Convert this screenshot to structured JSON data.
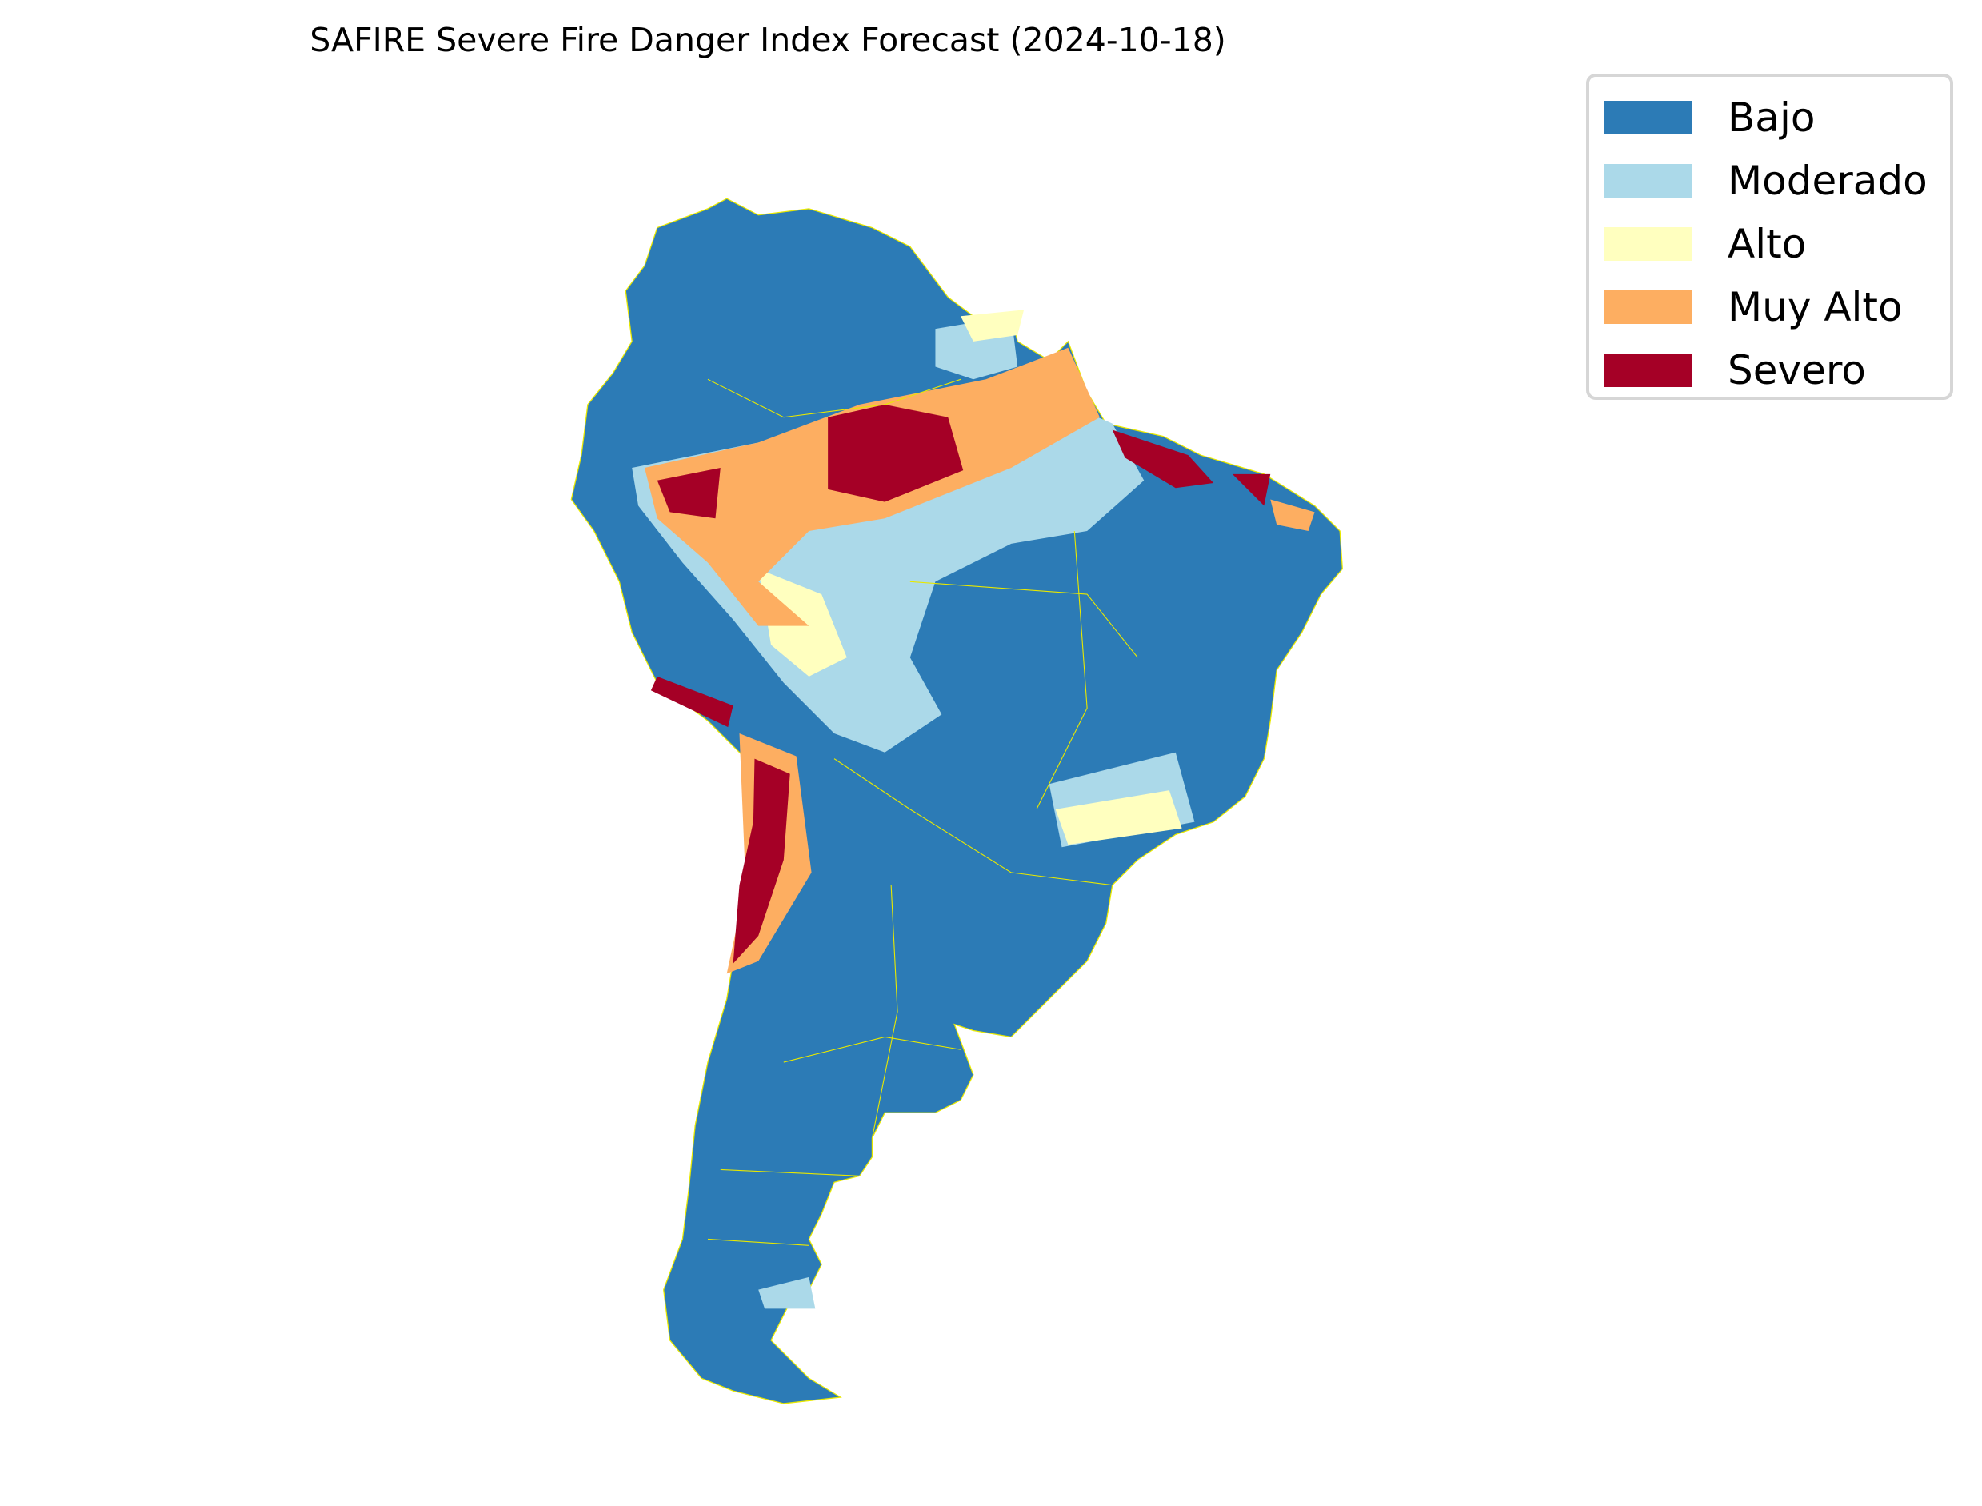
{
  "chart_data": {
    "type": "heatmap",
    "title": "SAFIRE Severe Fire Danger Index Forecast (2024-10-18)",
    "region": "South America",
    "legend_placement": "top-right",
    "categories": [
      {
        "label": "Bajo",
        "color": "#2c7bb6"
      },
      {
        "label": "Moderado",
        "color": "#abd9e9"
      },
      {
        "label": "Alto",
        "color": "#ffffbf"
      },
      {
        "label": "Muy Alto",
        "color": "#fdae61"
      },
      {
        "label": "Severo",
        "color": "#a50026"
      }
    ],
    "border_color": "#e8e800",
    "dominant_category": "Bajo",
    "hotspots": [
      {
        "area": "Central Amazon",
        "level": "Severo"
      },
      {
        "area": "Western Amazon (Peru/Colombia/Brazil)",
        "level": "Severo"
      },
      {
        "area": "Northeast Brazil coast",
        "level": "Severo"
      },
      {
        "area": "Atacama / Andes (Chile)",
        "level": "Severo"
      },
      {
        "area": "Southern Peru coast",
        "level": "Severo"
      },
      {
        "area": "Amazon belt",
        "level": "Muy Alto"
      },
      {
        "area": "Bolivia / Mato Grosso",
        "level": "Moderado"
      },
      {
        "area": "Southeast Brazil",
        "level": "Alto"
      }
    ]
  }
}
